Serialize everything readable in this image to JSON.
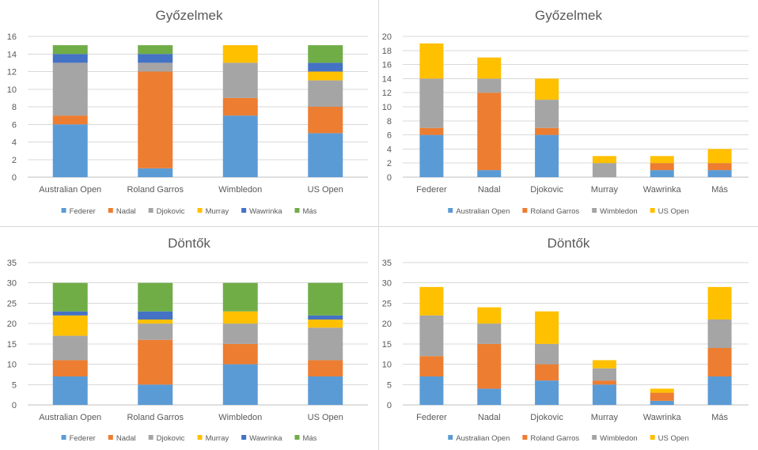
{
  "chart_data": [
    {
      "type": "bar",
      "stacked": true,
      "title": "Győzelmek",
      "categories": [
        "Australian Open",
        "Roland Garros",
        "Wimbledon",
        "US Open"
      ],
      "series": [
        {
          "name": "Federer",
          "color": "#5b9bd5",
          "values": [
            6,
            1,
            7,
            5
          ]
        },
        {
          "name": "Nadal",
          "color": "#ed7d31",
          "values": [
            1,
            11,
            2,
            3
          ]
        },
        {
          "name": "Djokovic",
          "color": "#a5a5a5",
          "values": [
            6,
            1,
            4,
            3
          ]
        },
        {
          "name": "Murray",
          "color": "#ffc000",
          "values": [
            0,
            0,
            2,
            1
          ]
        },
        {
          "name": "Wawrinka",
          "color": "#4472c4",
          "values": [
            1,
            1,
            0,
            1
          ]
        },
        {
          "name": "Más",
          "color": "#70ad47",
          "values": [
            1,
            1,
            0,
            2
          ]
        }
      ],
      "ylim": [
        0,
        16
      ],
      "yticks": [
        0,
        2,
        4,
        6,
        8,
        10,
        12,
        14,
        16
      ],
      "grid": true,
      "legend": "bottom"
    },
    {
      "type": "bar",
      "stacked": true,
      "title": "Győzelmek",
      "categories": [
        "Federer",
        "Nadal",
        "Djokovic",
        "Murray",
        "Wawrinka",
        "Más"
      ],
      "series": [
        {
          "name": "Australian Open",
          "color": "#5b9bd5",
          "values": [
            6,
            1,
            6,
            0,
            1,
            1
          ]
        },
        {
          "name": "Roland Garros",
          "color": "#ed7d31",
          "values": [
            1,
            11,
            1,
            0,
            1,
            1
          ]
        },
        {
          "name": "Wimbledon",
          "color": "#a5a5a5",
          "values": [
            7,
            2,
            4,
            2,
            0,
            0
          ]
        },
        {
          "name": "US Open",
          "color": "#ffc000",
          "values": [
            5,
            3,
            3,
            1,
            1,
            2
          ]
        }
      ],
      "ylim": [
        0,
        20
      ],
      "yticks": [
        0,
        2,
        4,
        6,
        8,
        10,
        12,
        14,
        16,
        18,
        20
      ],
      "grid": true,
      "legend": "bottom"
    },
    {
      "type": "bar",
      "stacked": true,
      "title": "Döntők",
      "categories": [
        "Australian Open",
        "Roland Garros",
        "Wimbledon",
        "US Open"
      ],
      "series": [
        {
          "name": "Federer",
          "color": "#5b9bd5",
          "values": [
            7,
            5,
            10,
            7
          ]
        },
        {
          "name": "Nadal",
          "color": "#ed7d31",
          "values": [
            4,
            11,
            5,
            4
          ]
        },
        {
          "name": "Djokovic",
          "color": "#a5a5a5",
          "values": [
            6,
            4,
            5,
            8
          ]
        },
        {
          "name": "Murray",
          "color": "#ffc000",
          "values": [
            5,
            1,
            3,
            2
          ]
        },
        {
          "name": "Wawrinka",
          "color": "#4472c4",
          "values": [
            1,
            2,
            0,
            1
          ]
        },
        {
          "name": "Más",
          "color": "#70ad47",
          "values": [
            7,
            7,
            7,
            8
          ]
        }
      ],
      "ylim": [
        0,
        35
      ],
      "yticks": [
        0,
        5,
        10,
        15,
        20,
        25,
        30,
        35
      ],
      "grid": true,
      "legend": "bottom"
    },
    {
      "type": "bar",
      "stacked": true,
      "title": "Döntők",
      "categories": [
        "Federer",
        "Nadal",
        "Djokovic",
        "Murray",
        "Wawrinka",
        "Más"
      ],
      "series": [
        {
          "name": "Australian Open",
          "color": "#5b9bd5",
          "values": [
            7,
            4,
            6,
            5,
            1,
            7
          ]
        },
        {
          "name": "Roland Garros",
          "color": "#ed7d31",
          "values": [
            5,
            11,
            4,
            1,
            2,
            7
          ]
        },
        {
          "name": "Wimbledon",
          "color": "#a5a5a5",
          "values": [
            10,
            5,
            5,
            3,
            0,
            7
          ]
        },
        {
          "name": "US Open",
          "color": "#ffc000",
          "values": [
            7,
            4,
            8,
            2,
            1,
            8
          ]
        }
      ],
      "ylim": [
        0,
        35
      ],
      "yticks": [
        0,
        5,
        10,
        15,
        20,
        25,
        30,
        35
      ],
      "grid": true,
      "legend": "bottom"
    }
  ]
}
